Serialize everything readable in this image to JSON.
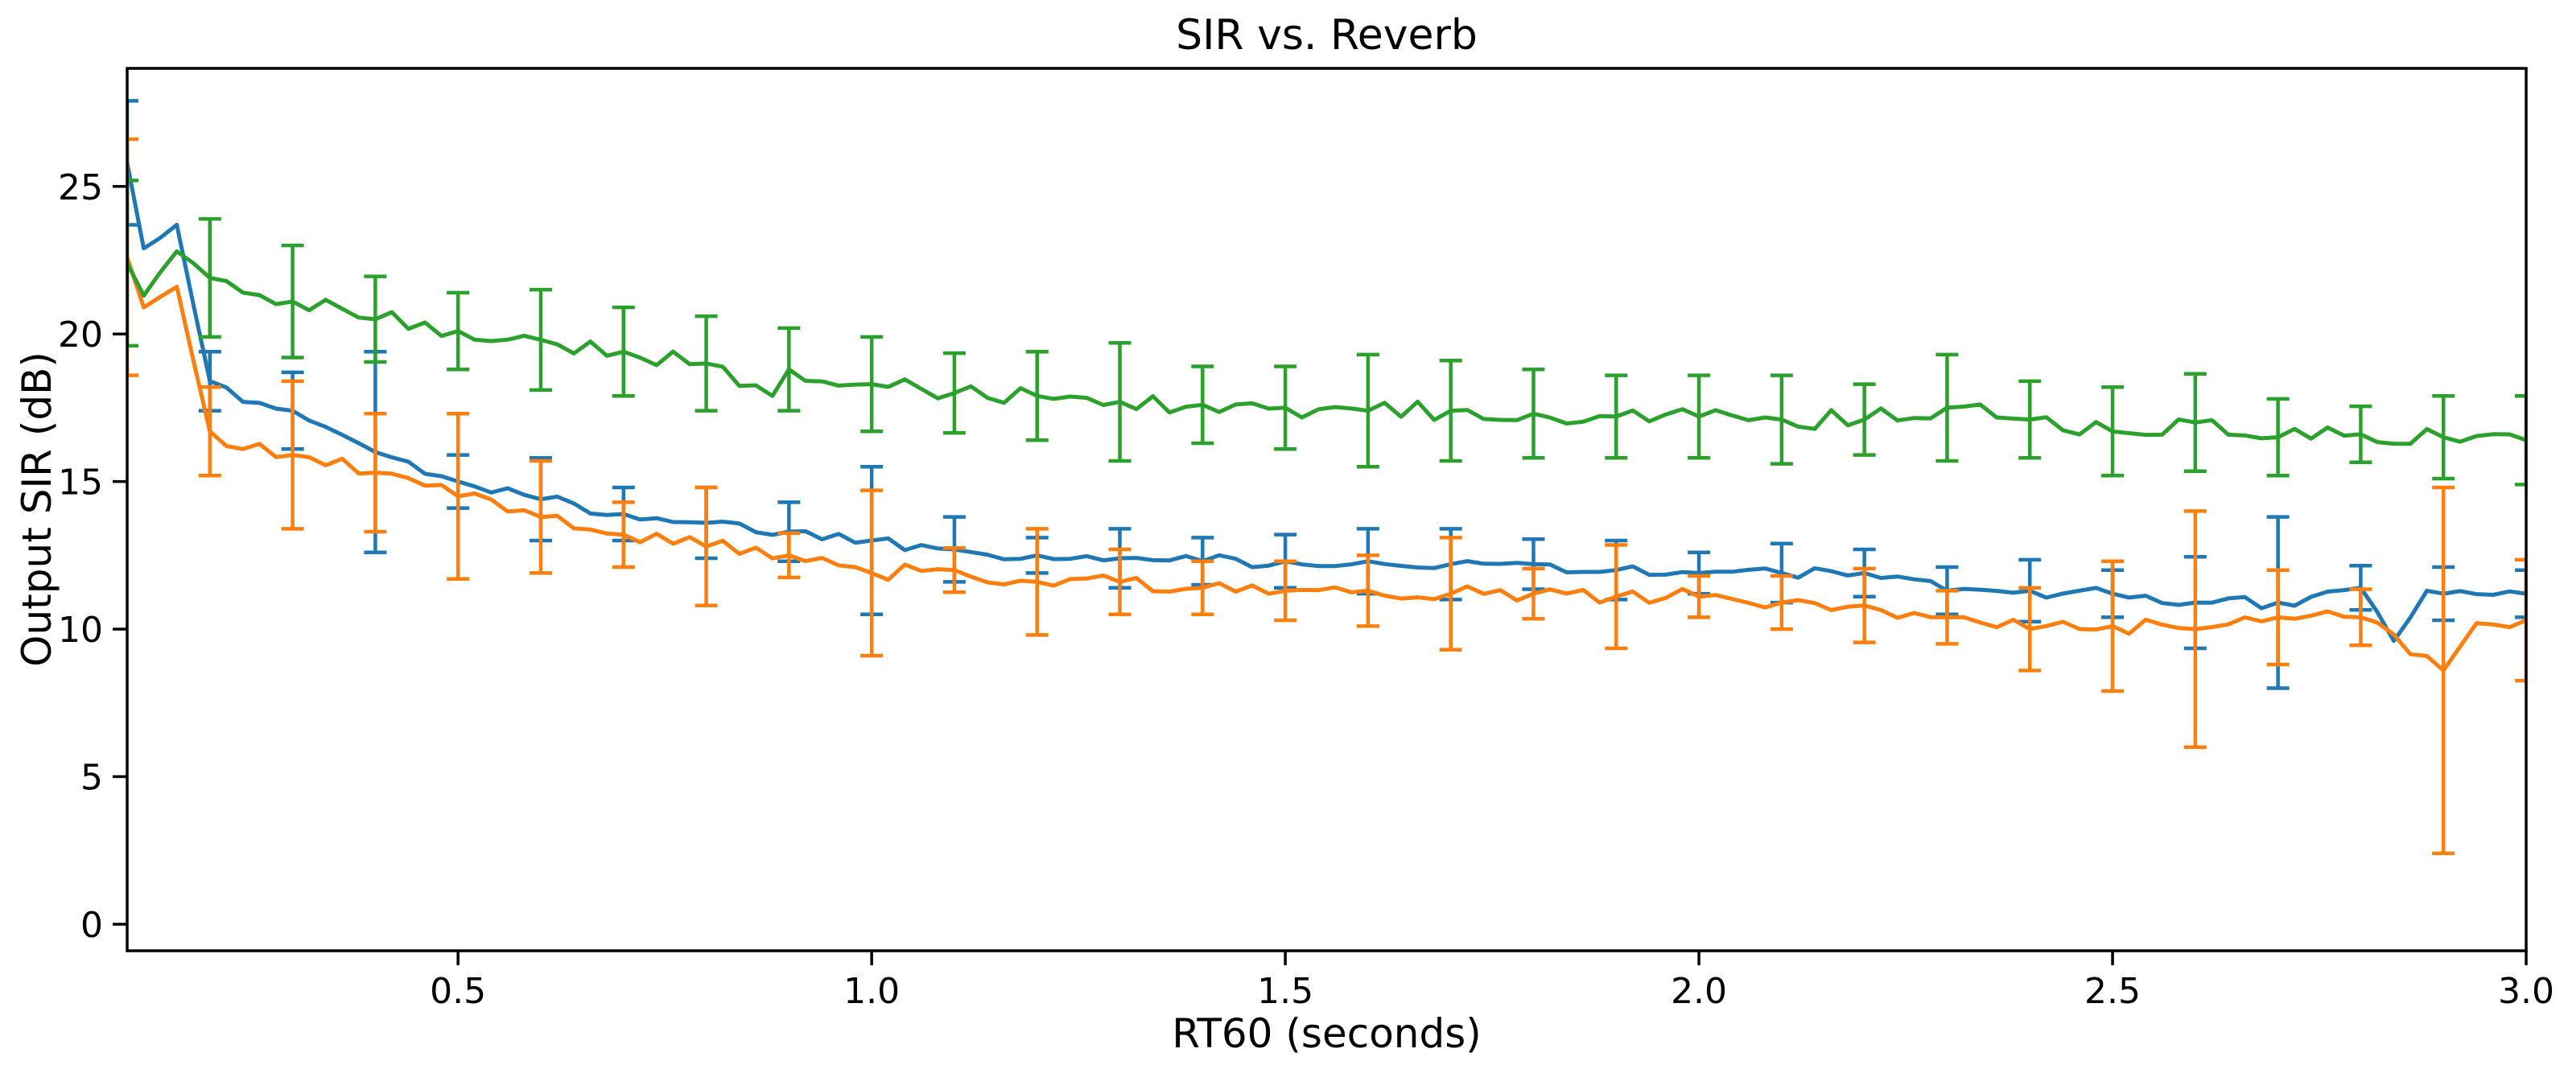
{
  "figure": {
    "title": "SIR vs. Reverb",
    "xlabel": "RT60 (seconds)",
    "ylabel": "Output SIR (dB)"
  },
  "chart_data": {
    "type": "line",
    "title": "SIR vs. Reverb",
    "xlabel": "RT60 (seconds)",
    "ylabel": "Output SIR (dB)",
    "grid": false,
    "legend": "none",
    "xlim": [
      0.1,
      3.0
    ],
    "ylim": [
      -0.9,
      29.0
    ],
    "xticks": [
      0.5,
      1.0,
      1.5,
      2.0,
      2.5,
      3.0
    ],
    "xtick_labels": [
      "0.5",
      "1.0",
      "1.5",
      "2.0",
      "2.5",
      "3.0"
    ],
    "yticks": [
      0,
      5,
      10,
      15,
      20,
      25
    ],
    "ytick_labels": [
      "0",
      "5",
      "10",
      "15",
      "20",
      "25"
    ],
    "errorbar_x": [
      0.1,
      0.2,
      0.3,
      0.4,
      0.5,
      0.6,
      0.7,
      0.8,
      0.9,
      1.0,
      1.1,
      1.2,
      1.3,
      1.4,
      1.5,
      1.6,
      1.7,
      1.8,
      1.9,
      2.0,
      2.1,
      2.2,
      2.3,
      2.4,
      2.5,
      2.6,
      2.7,
      2.8,
      2.9,
      3.0
    ],
    "line_point_step": 0.02,
    "series": [
      {
        "name": "series-blue",
        "color": "#1f77b4",
        "wiggle": 0.22,
        "anchors_x": [
          0.1,
          0.12,
          0.16,
          0.2,
          0.24,
          0.3,
          0.4,
          0.5,
          0.6,
          0.7,
          0.8,
          0.9,
          1.0,
          1.1,
          1.2,
          1.3,
          1.4,
          1.5,
          1.6,
          1.7,
          1.8,
          1.9,
          2.0,
          2.1,
          2.2,
          2.3,
          2.4,
          2.5,
          2.6,
          2.7,
          2.8,
          2.84,
          2.88,
          2.9,
          3.0
        ],
        "anchors_y": [
          25.8,
          22.9,
          23.7,
          18.4,
          17.7,
          17.4,
          16.0,
          15.0,
          14.4,
          13.9,
          13.6,
          13.3,
          13.0,
          12.7,
          12.5,
          12.4,
          12.3,
          12.3,
          12.3,
          12.2,
          12.2,
          12.0,
          11.9,
          11.9,
          11.9,
          11.3,
          11.3,
          11.2,
          10.9,
          10.9,
          11.4,
          9.6,
          11.3,
          11.2,
          11.2
        ],
        "yerr": [
          2.1,
          1.0,
          1.3,
          3.4,
          0.9,
          1.4,
          0.9,
          1.2,
          1.0,
          2.5,
          1.1,
          0.6,
          1.0,
          0.8,
          0.9,
          1.1,
          1.2,
          0.85,
          1.0,
          0.7,
          1.0,
          0.8,
          0.8,
          1.05,
          0.8,
          1.55,
          2.9,
          0.75,
          0.9,
          0.8
        ]
      },
      {
        "name": "series-orange",
        "color": "#ff7f0e",
        "wiggle": 0.26,
        "anchors_x": [
          0.1,
          0.12,
          0.16,
          0.2,
          0.24,
          0.3,
          0.4,
          0.5,
          0.6,
          0.7,
          0.8,
          0.9,
          1.0,
          1.1,
          1.2,
          1.3,
          1.4,
          1.5,
          1.6,
          1.7,
          1.8,
          1.9,
          2.0,
          2.1,
          2.2,
          2.3,
          2.4,
          2.5,
          2.6,
          2.7,
          2.8,
          2.9,
          2.94,
          3.0
        ],
        "anchors_y": [
          22.6,
          20.9,
          21.6,
          16.7,
          16.1,
          15.9,
          15.3,
          14.5,
          13.8,
          13.2,
          12.8,
          12.5,
          11.9,
          12.0,
          11.6,
          11.6,
          11.4,
          11.3,
          11.3,
          11.2,
          11.2,
          11.1,
          11.1,
          10.9,
          10.8,
          10.4,
          10.0,
          10.1,
          10.0,
          10.4,
          10.4,
          8.6,
          10.2,
          10.3
        ],
        "yerr": [
          4.0,
          1.5,
          2.5,
          2.0,
          2.8,
          1.9,
          1.1,
          2.0,
          0.75,
          2.8,
          0.75,
          1.8,
          1.1,
          0.9,
          1.0,
          1.2,
          1.9,
          0.85,
          1.75,
          0.7,
          0.9,
          1.25,
          0.9,
          1.4,
          2.2,
          4.0,
          1.6,
          0.95,
          6.2,
          2.05
        ]
      },
      {
        "name": "series-green",
        "color": "#2ca02c",
        "wiggle": 0.32,
        "anchors_x": [
          0.1,
          0.12,
          0.16,
          0.2,
          0.24,
          0.3,
          0.4,
          0.5,
          0.6,
          0.7,
          0.8,
          0.88,
          0.9,
          1.0,
          1.1,
          1.2,
          1.3,
          1.4,
          1.5,
          1.6,
          1.7,
          1.8,
          1.9,
          2.0,
          2.1,
          2.2,
          2.3,
          2.4,
          2.5,
          2.6,
          2.7,
          2.8,
          2.9,
          3.0
        ],
        "anchors_y": [
          22.4,
          21.3,
          22.8,
          21.9,
          21.4,
          21.1,
          20.5,
          20.1,
          19.8,
          19.4,
          19.0,
          17.9,
          18.8,
          18.3,
          18.0,
          17.9,
          17.7,
          17.6,
          17.5,
          17.4,
          17.4,
          17.3,
          17.2,
          17.2,
          17.1,
          17.1,
          17.5,
          17.1,
          16.7,
          17.0,
          16.5,
          16.6,
          16.5,
          16.4
        ],
        "yerr": [
          2.8,
          2.0,
          1.9,
          1.45,
          1.3,
          1.7,
          1.5,
          1.6,
          1.4,
          1.6,
          1.35,
          1.5,
          2.0,
          1.3,
          1.4,
          1.9,
          1.7,
          1.5,
          1.4,
          1.4,
          1.5,
          1.2,
          1.8,
          1.3,
          1.5,
          1.65,
          1.3,
          0.95,
          1.4,
          1.5
        ]
      }
    ]
  }
}
